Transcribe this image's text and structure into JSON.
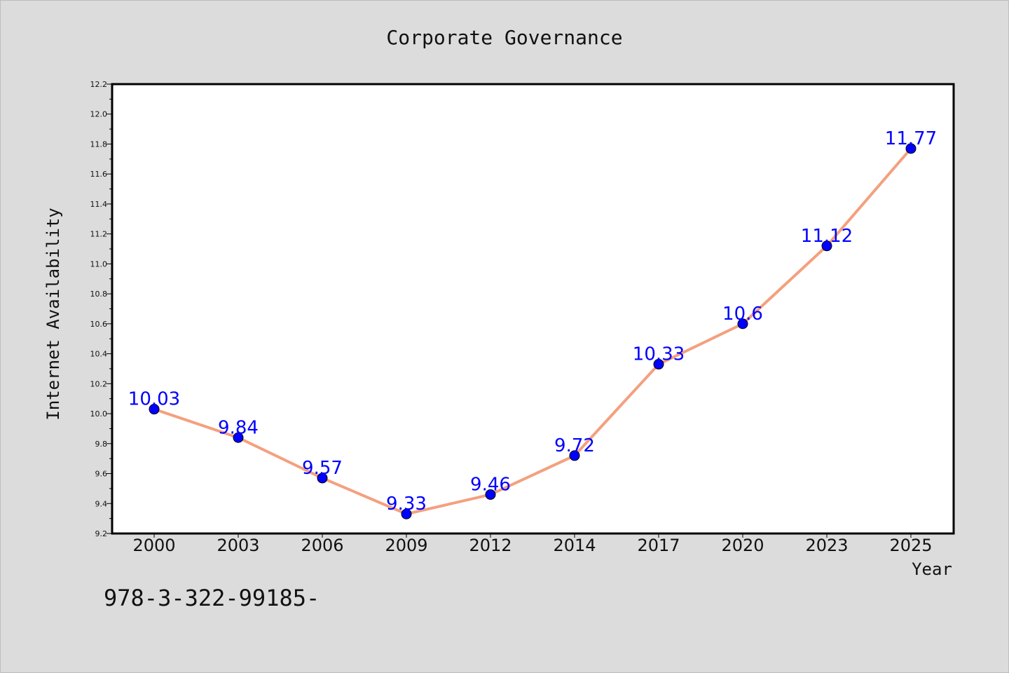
{
  "chart_data": {
    "type": "line",
    "title": "Corporate Governance",
    "xlabel": "Year",
    "ylabel": "Internet Availability",
    "categories": [
      "2000",
      "2003",
      "2006",
      "2009",
      "2012",
      "2014",
      "2017",
      "2020",
      "2023",
      "2025"
    ],
    "series": [
      {
        "values": [
          10.03,
          9.84,
          9.57,
          9.33,
          9.46,
          9.72,
          10.33,
          10.6,
          11.12,
          11.77
        ],
        "labels": [
          "10.03",
          "9.84",
          "9.57",
          "9.33",
          "9.46",
          "9.72",
          "10.33",
          "10.6",
          "11.12",
          "11.77"
        ],
        "line_color": "#f4a07e",
        "marker_color": "#0000ff"
      }
    ],
    "ylim": [
      9.2,
      12.2
    ],
    "yticks": [
      "9.2",
      "9.4",
      "9.6",
      "9.8",
      "10.0",
      "10.2",
      "10.4",
      "10.6",
      "10.8",
      "11.0",
      "11.2",
      "11.4",
      "11.6",
      "11.8",
      "12.0",
      "12.2"
    ],
    "grid": false,
    "legend": "none"
  },
  "footer": {
    "text": "978-3-322-99185-"
  },
  "colors": {
    "background": "#dcdcdc",
    "plot_background": "#ffffff",
    "line": "#f4a07e",
    "marker": "#0000ff",
    "data_label": "#0000ff"
  }
}
